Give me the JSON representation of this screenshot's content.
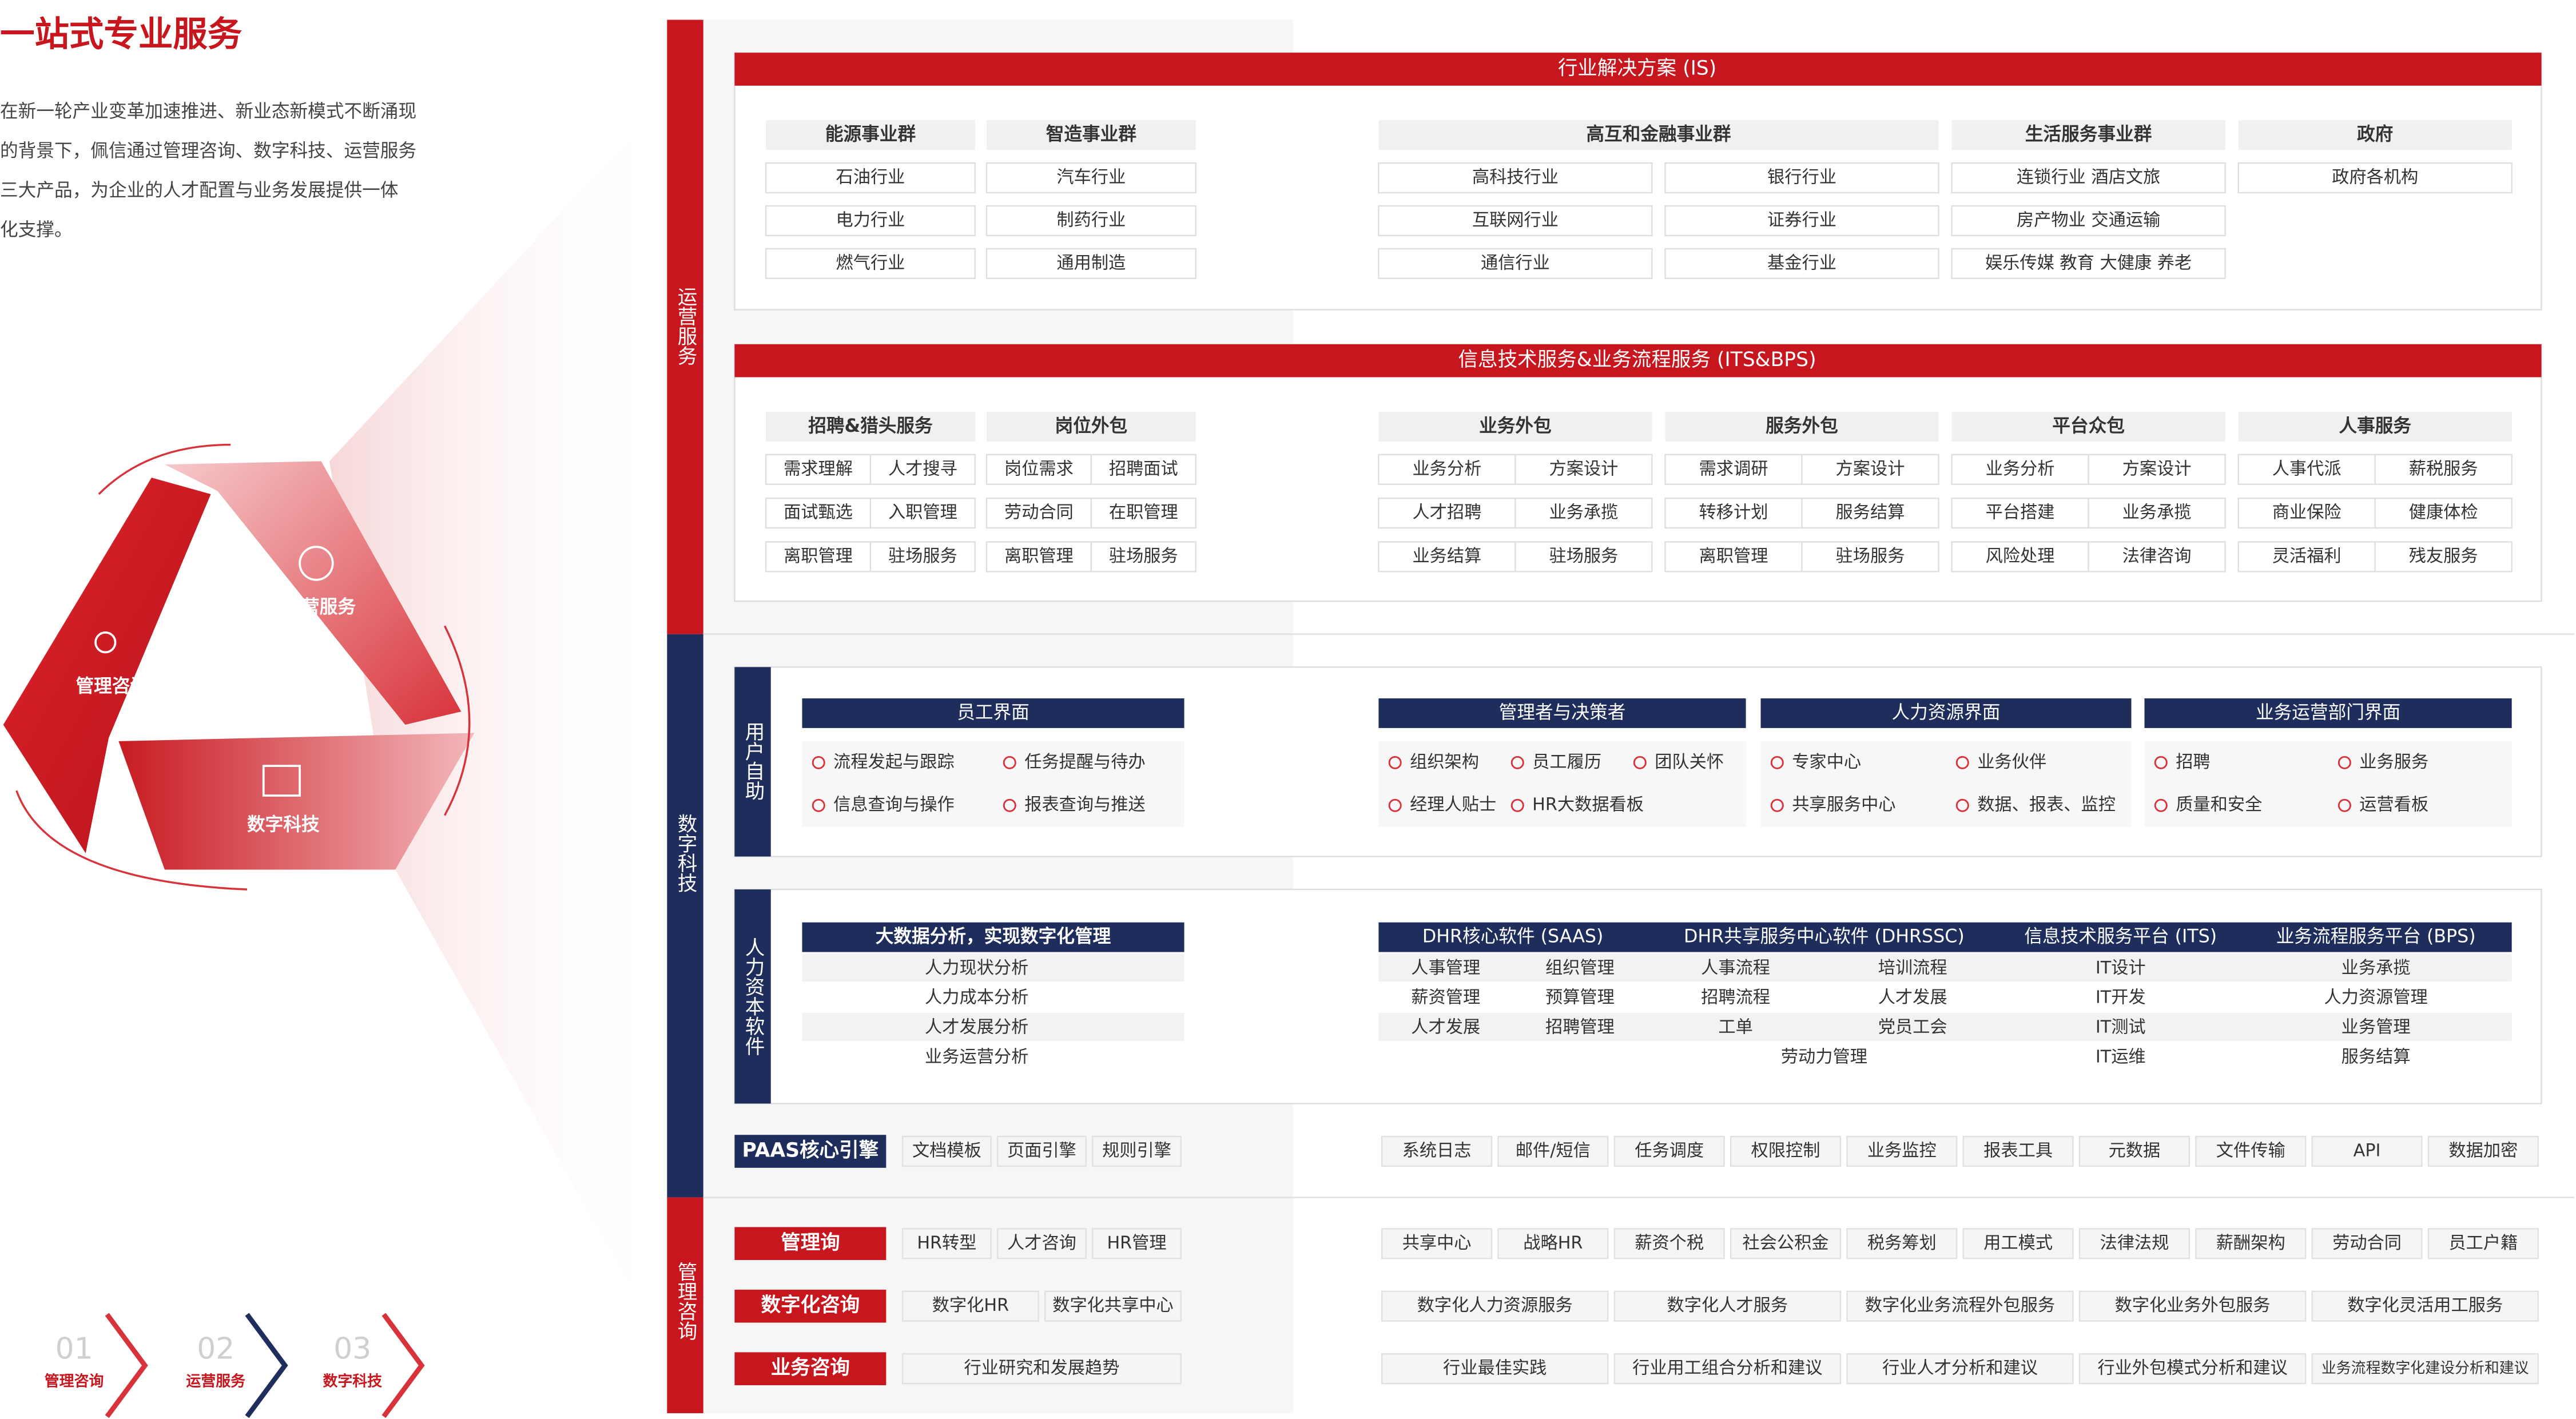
{
  "intro": {
    "title": "一站式专业服务",
    "paragraph": [
      "在新一轮产业变革加速推进、新业态新模式不断涌现",
      "的背景下，佩信通过管理咨询、数字科技、运营服务",
      "三大产品，为企业的人才配置与业务发展提供一体",
      "化支撑。"
    ]
  },
  "cycle": [
    "管理咨询",
    "运营服务",
    "数字科技"
  ],
  "steps": [
    {
      "num": "01",
      "label": "管理咨询"
    },
    {
      "num": "02",
      "label": "运营服务"
    },
    {
      "num": "03",
      "label": "数字科技"
    }
  ],
  "sections": [
    "运营服务",
    "数字科技",
    "管理咨询"
  ],
  "is": {
    "title": "行业解决方案 (IS)",
    "groups": [
      {
        "name": "能源事业群",
        "items": [
          "石油行业",
          "电力行业",
          "燃气行业"
        ]
      },
      {
        "name": "智造事业群",
        "items": [
          "汽车行业",
          "制药行业",
          "通用制造"
        ]
      },
      {
        "name": "高互和金融事业群",
        "items": [
          "高科技行业",
          "银行行业",
          "互联网行业",
          "证券行业",
          "通信行业",
          "基金行业"
        ]
      },
      {
        "name": "生活服务事业群",
        "items": [
          "连锁行业 酒店文旅",
          "房产物业 交通运输",
          "娱乐传媒 教育 大健康 养老"
        ]
      },
      {
        "name": "政府",
        "items": [
          "政府各机构"
        ]
      }
    ]
  },
  "its": {
    "title": "信息技术服务&业务流程服务 (ITS&BPS)",
    "groups": [
      {
        "name": "招聘&猎头服务",
        "items": [
          [
            "需求理解",
            "人才搜寻"
          ],
          [
            "面试甄选",
            "入职管理"
          ],
          [
            "离职管理",
            "驻场服务"
          ]
        ]
      },
      {
        "name": "岗位外包",
        "items": [
          [
            "岗位需求",
            "招聘面试"
          ],
          [
            "劳动合同",
            "在职管理"
          ],
          [
            "离职管理",
            "驻场服务"
          ]
        ]
      },
      {
        "name": "业务外包",
        "items": [
          [
            "业务分析",
            "方案设计"
          ],
          [
            "人才招聘",
            "业务承揽"
          ],
          [
            "业务结算",
            "驻场服务"
          ]
        ]
      },
      {
        "name": "服务外包",
        "items": [
          [
            "需求调研",
            "方案设计"
          ],
          [
            "转移计划",
            "服务结算"
          ],
          [
            "离职管理",
            "驻场服务"
          ]
        ]
      },
      {
        "name": "平台众包",
        "items": [
          [
            "业务分析",
            "方案设计"
          ],
          [
            "平台搭建",
            "业务承揽"
          ],
          [
            "风险处理",
            "法律咨询"
          ]
        ]
      },
      {
        "name": "人事服务",
        "items": [
          [
            "人事代派",
            "薪税服务"
          ],
          [
            "商业保险",
            "健康体检"
          ],
          [
            "灵活福利",
            "残友服务"
          ]
        ]
      }
    ]
  },
  "user_self": {
    "label": "用户自助",
    "panels": [
      {
        "title": "员工界面",
        "rows": [
          [
            "流程发起与跟踪",
            "任务提醒与待办"
          ],
          [
            "信息查询与操作",
            "报表查询与推送"
          ]
        ]
      },
      {
        "title": "管理者与决策者",
        "rows": [
          [
            "组织架构",
            "员工履历",
            "团队关怀"
          ],
          [
            "经理人贴士",
            "HR大数据看板"
          ]
        ]
      },
      {
        "title": "人力资源界面",
        "rows": [
          [
            "专家中心",
            "业务伙伴"
          ],
          [
            "共享服务中心",
            "数据、报表、监控"
          ]
        ]
      },
      {
        "title": "业务运营部门界面",
        "rows": [
          [
            "招聘",
            "业务服务"
          ],
          [
            "质量和安全",
            "运营看板"
          ]
        ]
      }
    ]
  },
  "hr_software": {
    "label": "人力资本软件",
    "analytics": {
      "title": "大数据分析，实现数字化管理",
      "items": [
        "人力现状分析",
        "人力成本分析",
        "人才发展分析",
        "业务运营分析"
      ]
    },
    "platforms": [
      {
        "title": "DHR核心软件 (SAAS)",
        "rows": [
          [
            "人事管理",
            "组织管理"
          ],
          [
            "薪资管理",
            "预算管理"
          ],
          [
            "人才发展",
            "招聘管理"
          ]
        ]
      },
      {
        "title": "DHR共享服务中心软件 (DHRSSC)",
        "rows": [
          [
            "人事流程",
            "培训流程"
          ],
          [
            "招聘流程",
            "人才发展"
          ],
          [
            "工单",
            "党员工会"
          ],
          [
            "劳动力管理"
          ]
        ]
      },
      {
        "title": "信息技术服务平台 (ITS)",
        "rows": [
          [
            "IT设计"
          ],
          [
            "IT开发"
          ],
          [
            "IT测试"
          ],
          [
            "IT运维"
          ]
        ]
      },
      {
        "title": "业务流程服务平台 (BPS)",
        "rows": [
          [
            "业务承揽"
          ],
          [
            "人力资源管理"
          ],
          [
            "业务管理"
          ],
          [
            "服务结算"
          ]
        ]
      }
    ]
  },
  "paas": {
    "title": "PAAS核心引擎",
    "left": [
      "文档模板",
      "页面引擎",
      "规则引擎"
    ],
    "right": [
      "系统日志",
      "邮件/短信",
      "任务调度",
      "权限控制",
      "业务监控",
      "报表工具",
      "元数据",
      "文件传输",
      "API",
      "数据加密"
    ]
  },
  "consulting": [
    {
      "title": "管理询",
      "left": [
        "HR转型",
        "人才咨询",
        "HR管理"
      ],
      "right": [
        "共享中心",
        "战略HR",
        "薪资个税",
        "社会公积金",
        "税务筹划",
        "用工模式",
        "法律法规",
        "薪酬架构",
        "劳动合同",
        "员工户籍"
      ]
    },
    {
      "title": "数字化咨询",
      "left": [
        "数字化HR",
        "数字化共享中心"
      ],
      "right": [
        "数字化人力资源服务",
        "数字化人才服务",
        "数字化业务流程外包服务",
        "数字化业务外包服务",
        "数字化灵活用工服务"
      ]
    },
    {
      "title": "业务咨询",
      "left": [
        "行业研究和发展趋势"
      ],
      "right": [
        "行业最佳实践",
        "行业用工组合分析和建议",
        "行业人才分析和建议",
        "行业外包模式分析和建议",
        "业务流程数字化建设分析和建议"
      ]
    }
  ]
}
